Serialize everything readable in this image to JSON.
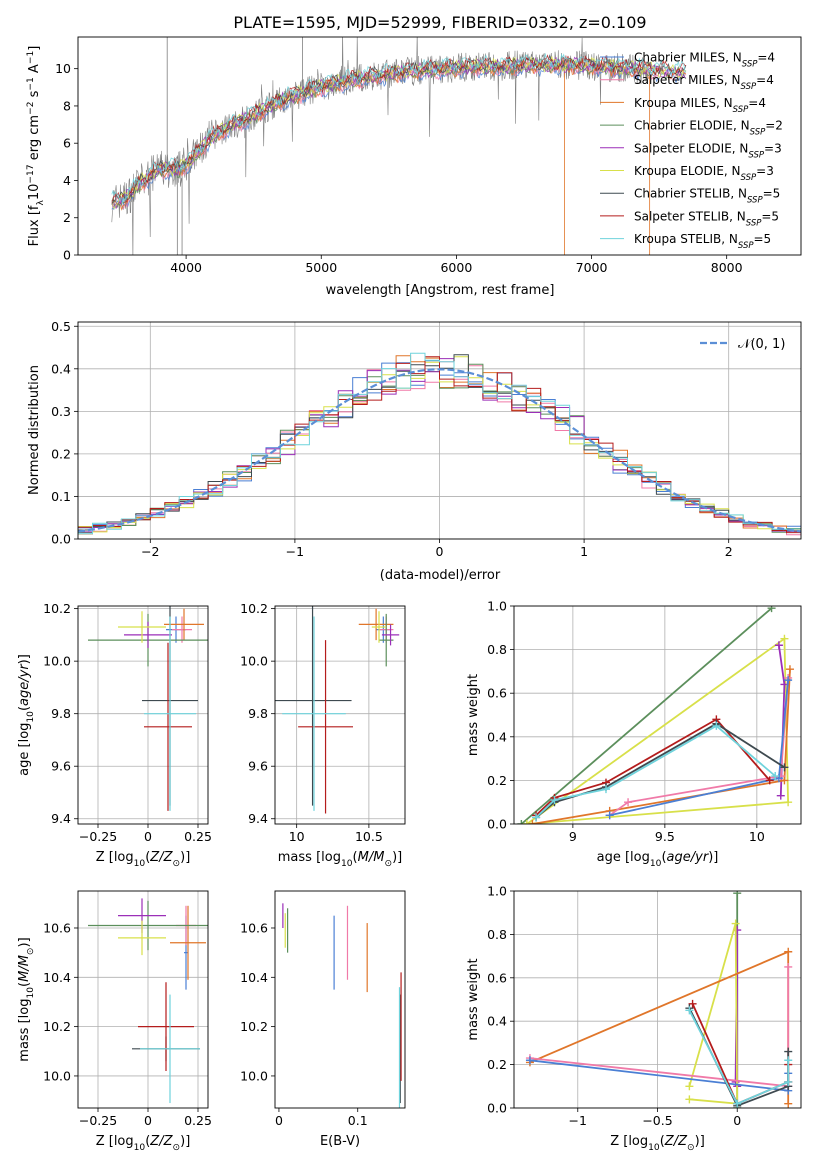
{
  "figure": {
    "title": "PLATE=1595, MJD=52999, FIBERID=0332, z=0.109"
  },
  "colors": {
    "chabrier_miles": "#4a7fd4",
    "salpeter_miles": "#f07aa8",
    "kroupa_miles": "#e0762a",
    "chabrier_elodie": "#5c8f5c",
    "salpeter_elodie": "#9b2fb8",
    "kroupa_elodie": "#d8e04a",
    "chabrier_stelib": "#3e4a50",
    "salpeter_stelib": "#b41c1c",
    "kroupa_stelib": "#6fd3dc",
    "data": "#7f7f7f",
    "normal_curve": "#5b8fd6"
  },
  "chart_data": [
    {
      "id": "spectrum",
      "type": "line",
      "xlabel": "wavelength [Angstrom, rest frame]",
      "ylabel": "Flux [f_λ 10^-17 erg cm^-2 s^-1 A^-1]",
      "xlim": [
        3200,
        8550
      ],
      "ylim": [
        0,
        11.7
      ],
      "xticks": [
        4000,
        5000,
        6000,
        7000,
        8000
      ],
      "yticks": [
        0,
        2,
        4,
        6,
        8,
        10
      ],
      "legend_position": "upper-right",
      "series": [
        {
          "name": "Chabrier MILES, N_SSP=4",
          "color_key": "chabrier_miles"
        },
        {
          "name": "Salpeter MILES, N_SSP=4",
          "color_key": "salpeter_miles"
        },
        {
          "name": "Kroupa MILES, N_SSP=4",
          "color_key": "kroupa_miles"
        },
        {
          "name": "Chabrier ELODIE, N_SSP=2",
          "color_key": "chabrier_elodie"
        },
        {
          "name": "Salpeter ELODIE, N_SSP=3",
          "color_key": "salpeter_elodie"
        },
        {
          "name": "Kroupa ELODIE, N_SSP=3",
          "color_key": "kroupa_elodie"
        },
        {
          "name": "Chabrier STELIB, N_SSP=5",
          "color_key": "chabrier_stelib"
        },
        {
          "name": "Salpeter STELIB, N_SSP=5",
          "color_key": "salpeter_stelib"
        },
        {
          "name": "Kroupa STELIB, N_SSP=5",
          "color_key": "kroupa_stelib"
        }
      ],
      "continuum": {
        "x": [
          3450,
          3550,
          3650,
          3800,
          3950,
          4050,
          4200,
          4350,
          4500,
          4700,
          4900,
          5100,
          5300,
          5500,
          5700,
          5900,
          6100,
          6300,
          6500,
          6700,
          6900,
          7100,
          7300,
          7500,
          7700
        ],
        "y": [
          2.8,
          3.0,
          3.8,
          4.6,
          4.6,
          5.2,
          6.4,
          7.0,
          7.5,
          8.3,
          8.8,
          9.2,
          9.5,
          9.7,
          9.9,
          10.0,
          10.1,
          10.1,
          10.2,
          10.2,
          10.2,
          10.1,
          10.0,
          9.9,
          9.8
        ]
      }
    },
    {
      "id": "residuals",
      "type": "histogram",
      "xlabel": "(data-model)/error",
      "ylabel": "Normed distribution",
      "xlim": [
        -2.5,
        2.5
      ],
      "ylim": [
        0,
        0.51
      ],
      "xticks": [
        -2,
        -1,
        0,
        1,
        2
      ],
      "yticks": [
        0.0,
        0.1,
        0.2,
        0.3,
        0.4,
        0.5
      ],
      "grid": true,
      "bin_width": 0.1,
      "legend": "𝒩(0, 1)"
    },
    {
      "id": "age_vs_Z",
      "type": "errorbar",
      "xlabel": "Z [log10(Z/Z⊙)]",
      "ylabel": "age  [log10(age/yr)]",
      "xlim": [
        -0.35,
        0.3
      ],
      "ylim": [
        9.38,
        10.21
      ],
      "xticks": [
        -0.25,
        0.0,
        0.25
      ],
      "yticks": [
        9.4,
        9.6,
        9.8,
        10.0,
        10.2
      ],
      "grid": true,
      "points": [
        {
          "key": "chabrier_miles",
          "x": 0.14,
          "xerr": 0.05,
          "y": 10.12,
          "yerr": 0.05
        },
        {
          "key": "salpeter_miles",
          "x": 0.17,
          "xerr": 0.05,
          "y": 10.12,
          "yerr": 0.05
        },
        {
          "key": "kroupa_miles",
          "x": 0.18,
          "xerr": 0.1,
          "y": 10.14,
          "yerr": 0.06
        },
        {
          "key": "chabrier_elodie",
          "x": 0.0,
          "xerr": 0.3,
          "y": 10.08,
          "yerr": 0.1
        },
        {
          "key": "salpeter_elodie",
          "x": 0.0,
          "xerr": 0.12,
          "y": 10.1,
          "yerr": 0.05
        },
        {
          "key": "kroupa_elodie",
          "x": -0.03,
          "xerr": 0.12,
          "y": 10.13,
          "yerr": 0.06
        },
        {
          "key": "chabrier_stelib",
          "x": 0.11,
          "xerr": 0.14,
          "y": 9.85,
          "yerr": 0.4
        },
        {
          "key": "salpeter_stelib",
          "x": 0.1,
          "xerr": 0.12,
          "y": 9.75,
          "yerr": 0.32
        },
        {
          "key": "kroupa_stelib",
          "x": 0.11,
          "xerr": 0.13,
          "y": 9.8,
          "yerr": 0.37
        }
      ]
    },
    {
      "id": "age_vs_mass",
      "type": "errorbar",
      "xlabel": "mass [log10(M/M⊙)]",
      "xlim": [
        9.85,
        10.75
      ],
      "ylim": [
        9.38,
        10.21
      ],
      "xticks": [
        10.0,
        10.5
      ],
      "yticks": [
        9.4,
        9.6,
        9.8,
        10.0,
        10.2
      ],
      "grid": true,
      "points": [
        {
          "key": "chabrier_miles",
          "x": 10.6,
          "xerr": 0.05,
          "y": 10.12,
          "yerr": 0.05
        },
        {
          "key": "salpeter_miles",
          "x": 10.62,
          "xerr": 0.05,
          "y": 10.12,
          "yerr": 0.05
        },
        {
          "key": "kroupa_miles",
          "x": 10.55,
          "xerr": 0.12,
          "y": 10.14,
          "yerr": 0.06
        },
        {
          "key": "chabrier_elodie",
          "x": 10.62,
          "xerr": 0.05,
          "y": 10.08,
          "yerr": 0.1
        },
        {
          "key": "salpeter_elodie",
          "x": 10.65,
          "xerr": 0.06,
          "y": 10.1,
          "yerr": 0.04
        },
        {
          "key": "kroupa_elodie",
          "x": 10.57,
          "xerr": 0.05,
          "y": 10.13,
          "yerr": 0.06
        },
        {
          "key": "chabrier_stelib",
          "x": 10.11,
          "xerr": 0.27,
          "y": 9.85,
          "yerr": 0.4
        },
        {
          "key": "salpeter_stelib",
          "x": 10.2,
          "xerr": 0.19,
          "y": 9.75,
          "yerr": 0.33
        },
        {
          "key": "kroupa_stelib",
          "x": 10.12,
          "xerr": 0.22,
          "y": 9.8,
          "yerr": 0.37
        }
      ]
    },
    {
      "id": "weight_vs_age",
      "type": "line",
      "xlabel": "age  [log10(age/yr)]",
      "ylabel": "mass weight",
      "xlim": [
        8.68,
        10.24
      ],
      "ylim": [
        0,
        1
      ],
      "xticks": [
        9.0,
        9.5,
        10.0
      ],
      "yticks": [
        0.0,
        0.2,
        0.4,
        0.6,
        0.8,
        1.0
      ],
      "grid": true,
      "series": [
        {
          "key": "chabrier_elodie",
          "x": [
            8.72,
            10.08
          ],
          "y": [
            0.0,
            0.99
          ]
        },
        {
          "key": "kroupa_elodie",
          "x": [
            8.75,
            10.15,
            10.17,
            8.75
          ],
          "y": [
            0.0,
            0.85,
            0.1,
            0.0
          ]
        },
        {
          "key": "salpeter_elodie",
          "x": [
            10.12,
            10.15,
            10.13
          ],
          "y": [
            0.82,
            0.64,
            0.13
          ]
        },
        {
          "key": "kroupa_miles",
          "x": [
            8.78,
            9.2,
            10.15,
            10.18
          ],
          "y": [
            0.0,
            0.06,
            0.2,
            0.71
          ]
        },
        {
          "key": "salpeter_miles",
          "x": [
            9.2,
            9.3,
            10.13,
            10.17
          ],
          "y": [
            0.04,
            0.1,
            0.22,
            0.67
          ]
        },
        {
          "key": "chabrier_miles",
          "x": [
            9.2,
            10.12,
            10.17
          ],
          "y": [
            0.04,
            0.21,
            0.66
          ]
        },
        {
          "key": "salpeter_stelib",
          "x": [
            8.8,
            8.9,
            9.18,
            9.78,
            10.07
          ],
          "y": [
            0.04,
            0.12,
            0.19,
            0.48,
            0.2
          ]
        },
        {
          "key": "chabrier_stelib",
          "x": [
            8.8,
            8.9,
            9.18,
            9.78,
            10.15
          ],
          "y": [
            0.03,
            0.1,
            0.17,
            0.46,
            0.26
          ]
        },
        {
          "key": "kroupa_stelib",
          "x": [
            8.8,
            8.9,
            9.18,
            9.78,
            10.1
          ],
          "y": [
            0.03,
            0.11,
            0.16,
            0.45,
            0.22
          ]
        }
      ]
    },
    {
      "id": "mass_vs_Z",
      "type": "errorbar",
      "xlabel": "Z [log10(Z/Z⊙)]",
      "ylabel": "mass [log10(M/M⊙)]",
      "xlim": [
        -0.35,
        0.3
      ],
      "ylim": [
        9.87,
        10.75
      ],
      "xticks": [
        -0.25,
        0.0,
        0.25
      ],
      "yticks": [
        10.0,
        10.2,
        10.4,
        10.6
      ],
      "grid": true,
      "points": [
        {
          "key": "chabrier_miles",
          "x": 0.19,
          "xerr": 0.01,
          "y": 10.5,
          "yerr": 0.15
        },
        {
          "key": "salpeter_miles",
          "x": 0.19,
          "xerr": 0.05,
          "y": 10.61,
          "yerr": 0.08
        },
        {
          "key": "kroupa_miles",
          "x": 0.2,
          "xerr": 0.09,
          "y": 10.54,
          "yerr": 0.15
        },
        {
          "key": "chabrier_elodie",
          "x": 0.0,
          "xerr": 0.3,
          "y": 10.61,
          "yerr": 0.1
        },
        {
          "key": "salpeter_elodie",
          "x": -0.03,
          "xerr": 0.12,
          "y": 10.65,
          "yerr": 0.07
        },
        {
          "key": "kroupa_elodie",
          "x": -0.03,
          "xerr": 0.12,
          "y": 10.56,
          "yerr": 0.07
        },
        {
          "key": "chabrier_stelib",
          "x": 0.09,
          "xerr": 0.17,
          "y": 10.11,
          "yerr": 0.05
        },
        {
          "key": "salpeter_stelib",
          "x": 0.09,
          "xerr": 0.14,
          "y": 10.2,
          "yerr": 0.18
        },
        {
          "key": "kroupa_stelib",
          "x": 0.11,
          "xerr": 0.15,
          "y": 10.11,
          "yerr": 0.22
        }
      ]
    },
    {
      "id": "mass_vs_ebv",
      "type": "errorbar",
      "xlabel": "E(B-V)",
      "xlim": [
        -0.005,
        0.16
      ],
      "ylim": [
        9.87,
        10.75
      ],
      "xticks": [
        0.0,
        0.1
      ],
      "yticks": [
        10.0,
        10.2,
        10.4,
        10.6
      ],
      "grid": false,
      "points": [
        {
          "key": "chabrier_miles",
          "x": 0.07,
          "xerr": 0,
          "y": 10.5,
          "yerr": 0.15
        },
        {
          "key": "salpeter_miles",
          "x": 0.087,
          "xerr": 0,
          "y": 10.54,
          "yerr": 0.15
        },
        {
          "key": "kroupa_miles",
          "x": 0.112,
          "xerr": 0,
          "y": 10.48,
          "yerr": 0.14
        },
        {
          "key": "chabrier_elodie",
          "x": 0.011,
          "xerr": 0,
          "y": 10.59,
          "yerr": 0.09
        },
        {
          "key": "salpeter_elodie",
          "x": 0.005,
          "xerr": 0,
          "y": 10.65,
          "yerr": 0.05
        },
        {
          "key": "kroupa_elodie",
          "x": 0.008,
          "xerr": 0,
          "y": 10.59,
          "yerr": 0.07
        },
        {
          "key": "chabrier_stelib",
          "x": 0.154,
          "xerr": 0,
          "y": 10.11,
          "yerr": 0.22
        },
        {
          "key": "salpeter_stelib",
          "x": 0.155,
          "xerr": 0,
          "y": 10.2,
          "yerr": 0.22
        },
        {
          "key": "kroupa_stelib",
          "x": 0.153,
          "xerr": 0,
          "y": 10.11,
          "yerr": 0.25
        }
      ]
    },
    {
      "id": "weight_vs_Z",
      "type": "line",
      "xlabel": "Z [log10(Z/Z⊙)]",
      "ylabel": "mass weight",
      "xlim": [
        -1.4,
        0.4
      ],
      "ylim": [
        0,
        1
      ],
      "xticks": [
        -1.0,
        -0.5,
        0.0
      ],
      "yticks": [
        0.0,
        0.2,
        0.4,
        0.6,
        0.8,
        1.0
      ],
      "grid": true,
      "series": [
        {
          "key": "chabrier_elodie",
          "x": [
            0.0,
            0.0
          ],
          "y": [
            0.0,
            0.99
          ]
        },
        {
          "key": "salpeter_elodie",
          "x": [
            -0.01,
            0.0,
            0.0
          ],
          "y": [
            0.12,
            0.82,
            0.1
          ]
        },
        {
          "key": "kroupa_elodie",
          "x": [
            -0.3,
            -0.01,
            0.0,
            -0.3
          ],
          "y": [
            0.1,
            0.85,
            0.02,
            0.04
          ]
        },
        {
          "key": "kroupa_miles",
          "x": [
            -1.3,
            0.32,
            0.32
          ],
          "y": [
            0.21,
            0.72,
            0.02
          ]
        },
        {
          "key": "salpeter_miles",
          "x": [
            -1.3,
            0.32,
            0.32
          ],
          "y": [
            0.23,
            0.1,
            0.65
          ]
        },
        {
          "key": "chabrier_miles",
          "x": [
            -1.3,
            0.32,
            0.32
          ],
          "y": [
            0.22,
            0.08,
            0.16
          ]
        },
        {
          "key": "salpeter_stelib",
          "x": [
            -0.28,
            0.0,
            0.32,
            0.32
          ],
          "y": [
            0.48,
            0.02,
            0.12,
            0.2
          ]
        },
        {
          "key": "chabrier_stelib",
          "x": [
            -0.3,
            0.0,
            0.32,
            0.32
          ],
          "y": [
            0.46,
            0.01,
            0.1,
            0.26
          ]
        },
        {
          "key": "kroupa_stelib",
          "x": [
            -0.3,
            0.0,
            0.32,
            0.32
          ],
          "y": [
            0.45,
            0.02,
            0.12,
            0.22
          ]
        }
      ]
    }
  ]
}
